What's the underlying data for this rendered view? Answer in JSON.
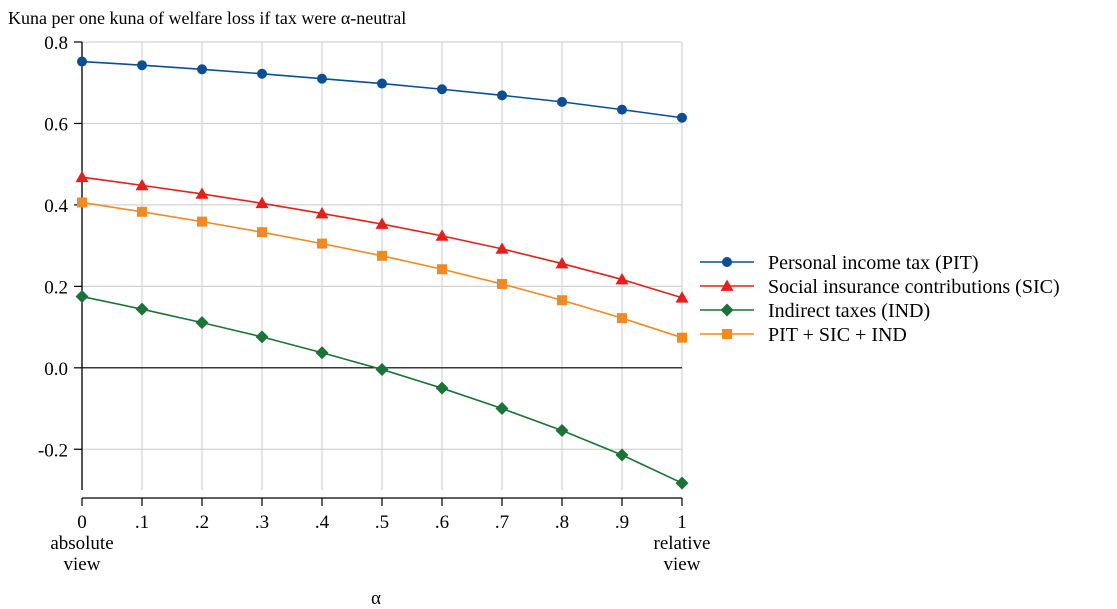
{
  "chart_data": {
    "type": "line",
    "title": "Kuna per one kuna of welfare loss if tax were α-neutral",
    "xlabel": "α",
    "ylabel": "",
    "x": [
      0,
      0.1,
      0.2,
      0.3,
      0.4,
      0.5,
      0.6,
      0.7,
      0.8,
      0.9,
      1.0
    ],
    "x_tick_labels": [
      "0",
      ".1",
      ".2",
      ".3",
      ".4",
      ".5",
      ".6",
      ".7",
      ".8",
      ".9",
      "1"
    ],
    "x_tick_sublabels": {
      "left": [
        "absolute",
        "view"
      ],
      "right": [
        "relative",
        "view"
      ]
    },
    "xlim": [
      0,
      1
    ],
    "ylim": [
      -0.3,
      0.8
    ],
    "y_ticks": [
      -0.2,
      0.0,
      0.2,
      0.4,
      0.6,
      0.8
    ],
    "y_tick_labels": [
      "-0.2",
      "0.0",
      "0.2",
      "0.4",
      "0.6",
      "0.8"
    ],
    "grid": true,
    "zero_line": true,
    "legend_position": "right",
    "series": [
      {
        "name": "Personal income tax (PIT)",
        "color": "#0b4e96",
        "marker": "circle",
        "values": [
          0.752,
          0.743,
          0.733,
          0.722,
          0.71,
          0.698,
          0.684,
          0.669,
          0.653,
          0.634,
          0.614
        ]
      },
      {
        "name": "Social insurance contributions (SIC)",
        "color": "#e3211c",
        "marker": "triangle",
        "values": [
          0.468,
          0.448,
          0.427,
          0.404,
          0.379,
          0.353,
          0.324,
          0.292,
          0.256,
          0.217,
          0.172
        ]
      },
      {
        "name": "Indirect taxes (IND)",
        "color": "#1b7437",
        "marker": "diamond",
        "values": [
          0.175,
          0.144,
          0.111,
          0.076,
          0.037,
          -0.004,
          -0.05,
          -0.1,
          -0.154,
          -0.214,
          -0.283
        ]
      },
      {
        "name": "PIT + SIC + IND",
        "color": "#f08a24",
        "marker": "square",
        "values": [
          0.406,
          0.383,
          0.359,
          0.333,
          0.305,
          0.275,
          0.242,
          0.206,
          0.166,
          0.122,
          0.074
        ]
      }
    ]
  }
}
